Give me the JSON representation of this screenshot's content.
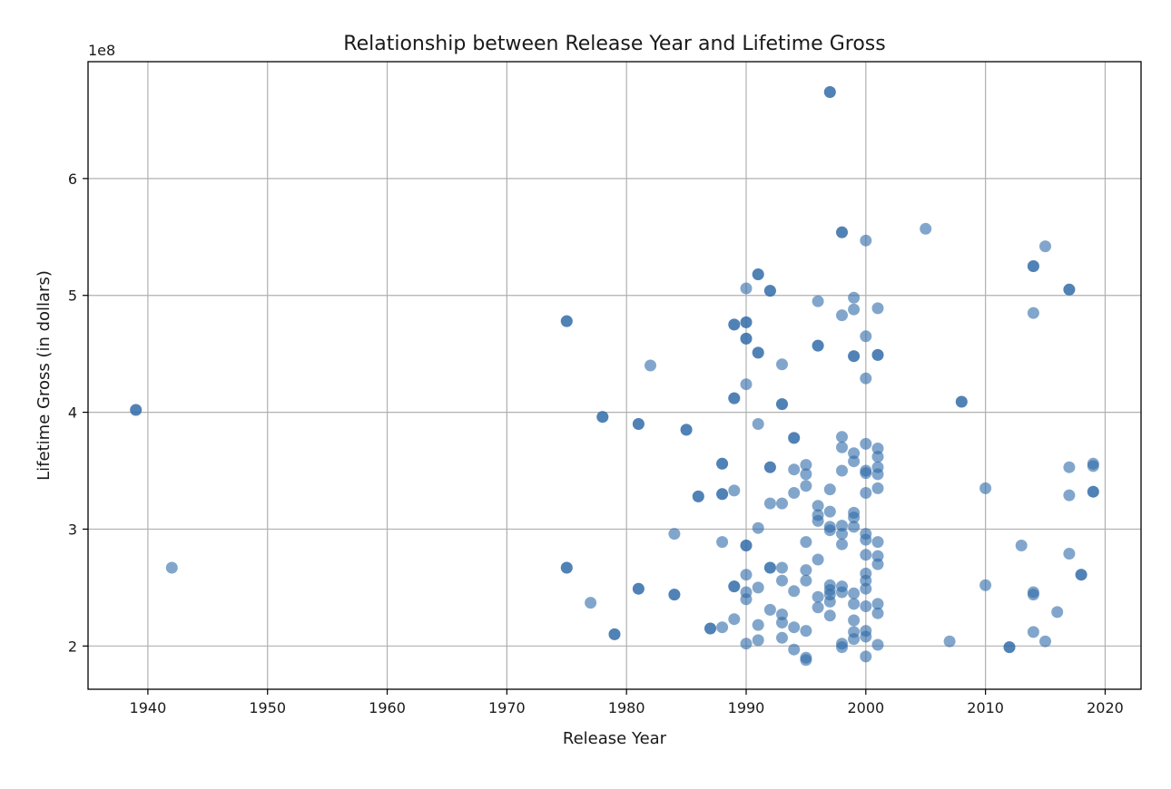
{
  "chart_data": {
    "type": "scatter",
    "title": "Relationship between Release Year and Lifetime Gross",
    "xlabel": "Release Year",
    "ylabel": "Lifetime Gross (in dollars)",
    "y_exponent_label": "1e8",
    "xlim": [
      1935,
      2023
    ],
    "ylim": [
      1.63,
      7.0
    ],
    "xticks": [
      1940,
      1950,
      1960,
      1970,
      1980,
      1990,
      2000,
      2010,
      2020
    ],
    "yticks": [
      2,
      3,
      4,
      5,
      6
    ],
    "grid": true,
    "point_color": "#2f6aa8",
    "point_alpha": 0.6,
    "y_units_note": "y values in units of 1e8 dollars",
    "points": [
      [
        1939,
        4.02
      ],
      [
        1939,
        4.02
      ],
      [
        1942,
        2.67
      ],
      [
        1975,
        4.78
      ],
      [
        1975,
        4.78
      ],
      [
        1975,
        2.67
      ],
      [
        1975,
        2.67
      ],
      [
        1977,
        2.37
      ],
      [
        1978,
        3.96
      ],
      [
        1978,
        3.96
      ],
      [
        1979,
        2.1
      ],
      [
        1979,
        2.1
      ],
      [
        1981,
        3.9
      ],
      [
        1981,
        3.9
      ],
      [
        1981,
        2.49
      ],
      [
        1981,
        2.49
      ],
      [
        1982,
        4.4
      ],
      [
        1984,
        2.96
      ],
      [
        1984,
        2.44
      ],
      [
        1984,
        2.44
      ],
      [
        1985,
        3.85
      ],
      [
        1985,
        3.85
      ],
      [
        1986,
        3.28
      ],
      [
        1986,
        3.28
      ],
      [
        1987,
        2.15
      ],
      [
        1987,
        2.15
      ],
      [
        1988,
        3.56
      ],
      [
        1988,
        3.56
      ],
      [
        1988,
        3.3
      ],
      [
        1988,
        3.3
      ],
      [
        1988,
        2.89
      ],
      [
        1988,
        2.16
      ],
      [
        1989,
        4.75
      ],
      [
        1989,
        4.75
      ],
      [
        1989,
        4.12
      ],
      [
        1989,
        4.12
      ],
      [
        1989,
        3.33
      ],
      [
        1989,
        2.51
      ],
      [
        1989,
        2.51
      ],
      [
        1989,
        2.23
      ],
      [
        1990,
        5.06
      ],
      [
        1990,
        4.77
      ],
      [
        1990,
        4.77
      ],
      [
        1990,
        4.63
      ],
      [
        1990,
        4.63
      ],
      [
        1990,
        4.24
      ],
      [
        1990,
        2.86
      ],
      [
        1990,
        2.86
      ],
      [
        1990,
        2.61
      ],
      [
        1990,
        2.46
      ],
      [
        1990,
        2.4
      ],
      [
        1990,
        2.02
      ],
      [
        1991,
        5.18
      ],
      [
        1991,
        5.18
      ],
      [
        1991,
        4.51
      ],
      [
        1991,
        4.51
      ],
      [
        1991,
        3.9
      ],
      [
        1991,
        3.01
      ],
      [
        1991,
        2.5
      ],
      [
        1991,
        2.18
      ],
      [
        1991,
        2.05
      ],
      [
        1992,
        5.04
      ],
      [
        1992,
        5.04
      ],
      [
        1992,
        3.53
      ],
      [
        1992,
        3.53
      ],
      [
        1992,
        3.22
      ],
      [
        1992,
        2.67
      ],
      [
        1992,
        2.67
      ],
      [
        1992,
        2.31
      ],
      [
        1993,
        4.41
      ],
      [
        1993,
        4.07
      ],
      [
        1993,
        4.07
      ],
      [
        1993,
        3.22
      ],
      [
        1993,
        2.67
      ],
      [
        1993,
        2.56
      ],
      [
        1993,
        2.27
      ],
      [
        1993,
        2.2
      ],
      [
        1993,
        2.07
      ],
      [
        1994,
        3.78
      ],
      [
        1994,
        3.78
      ],
      [
        1994,
        3.51
      ],
      [
        1994,
        3.31
      ],
      [
        1994,
        2.47
      ],
      [
        1994,
        2.16
      ],
      [
        1994,
        1.97
      ],
      [
        1995,
        3.55
      ],
      [
        1995,
        3.47
      ],
      [
        1995,
        3.37
      ],
      [
        1995,
        2.89
      ],
      [
        1995,
        2.65
      ],
      [
        1995,
        2.56
      ],
      [
        1995,
        2.13
      ],
      [
        1995,
        1.88
      ],
      [
        1995,
        1.9
      ],
      [
        1996,
        4.95
      ],
      [
        1996,
        4.57
      ],
      [
        1996,
        4.57
      ],
      [
        1996,
        3.2
      ],
      [
        1996,
        3.12
      ],
      [
        1996,
        3.07
      ],
      [
        1996,
        2.74
      ],
      [
        1996,
        2.42
      ],
      [
        1996,
        2.33
      ],
      [
        1997,
        6.74
      ],
      [
        1997,
        6.74
      ],
      [
        1997,
        3.34
      ],
      [
        1997,
        3.15
      ],
      [
        1997,
        3.02
      ],
      [
        1997,
        2.99
      ],
      [
        1997,
        2.52
      ],
      [
        1997,
        2.48
      ],
      [
        1997,
        2.44
      ],
      [
        1997,
        2.38
      ],
      [
        1997,
        2.26
      ],
      [
        1998,
        5.54
      ],
      [
        1998,
        5.54
      ],
      [
        1998,
        4.83
      ],
      [
        1998,
        3.79
      ],
      [
        1998,
        3.7
      ],
      [
        1998,
        3.5
      ],
      [
        1998,
        3.03
      ],
      [
        1998,
        2.96
      ],
      [
        1998,
        2.87
      ],
      [
        1998,
        2.51
      ],
      [
        1998,
        2.46
      ],
      [
        1998,
        2.02
      ],
      [
        1998,
        1.99
      ],
      [
        1999,
        4.98
      ],
      [
        1999,
        4.88
      ],
      [
        1999,
        4.48
      ],
      [
        1999,
        4.48
      ],
      [
        1999,
        3.65
      ],
      [
        1999,
        3.58
      ],
      [
        1999,
        3.14
      ],
      [
        1999,
        3.1
      ],
      [
        1999,
        3.02
      ],
      [
        1999,
        2.45
      ],
      [
        1999,
        2.36
      ],
      [
        1999,
        2.22
      ],
      [
        1999,
        2.12
      ],
      [
        1999,
        2.06
      ],
      [
        2000,
        5.47
      ],
      [
        2000,
        4.65
      ],
      [
        2000,
        4.29
      ],
      [
        2000,
        3.73
      ],
      [
        2000,
        3.5
      ],
      [
        2000,
        3.48
      ],
      [
        2000,
        3.31
      ],
      [
        2000,
        2.96
      ],
      [
        2000,
        2.91
      ],
      [
        2000,
        2.78
      ],
      [
        2000,
        2.62
      ],
      [
        2000,
        2.56
      ],
      [
        2000,
        2.49
      ],
      [
        2000,
        2.34
      ],
      [
        2000,
        2.13
      ],
      [
        2000,
        2.08
      ],
      [
        2000,
        1.91
      ],
      [
        2001,
        4.89
      ],
      [
        2001,
        4.49
      ],
      [
        2001,
        4.49
      ],
      [
        2001,
        3.69
      ],
      [
        2001,
        3.62
      ],
      [
        2001,
        3.53
      ],
      [
        2001,
        3.47
      ],
      [
        2001,
        3.35
      ],
      [
        2001,
        2.89
      ],
      [
        2001,
        2.77
      ],
      [
        2001,
        2.7
      ],
      [
        2001,
        2.36
      ],
      [
        2001,
        2.28
      ],
      [
        2001,
        2.01
      ],
      [
        2005,
        5.57
      ],
      [
        2007,
        2.04
      ],
      [
        2008,
        4.09
      ],
      [
        2008,
        4.09
      ],
      [
        2010,
        3.35
      ],
      [
        2010,
        2.52
      ],
      [
        2012,
        1.99
      ],
      [
        2012,
        1.99
      ],
      [
        2013,
        2.86
      ],
      [
        2014,
        5.25
      ],
      [
        2014,
        5.25
      ],
      [
        2014,
        4.85
      ],
      [
        2014,
        2.46
      ],
      [
        2014,
        2.44
      ],
      [
        2014,
        2.12
      ],
      [
        2015,
        5.42
      ],
      [
        2015,
        2.04
      ],
      [
        2016,
        2.29
      ],
      [
        2017,
        5.05
      ],
      [
        2017,
        5.05
      ],
      [
        2017,
        3.53
      ],
      [
        2017,
        3.29
      ],
      [
        2017,
        2.79
      ],
      [
        2018,
        2.61
      ],
      [
        2018,
        2.61
      ],
      [
        2019,
        3.56
      ],
      [
        2019,
        3.54
      ],
      [
        2019,
        3.32
      ],
      [
        2019,
        3.32
      ]
    ]
  }
}
